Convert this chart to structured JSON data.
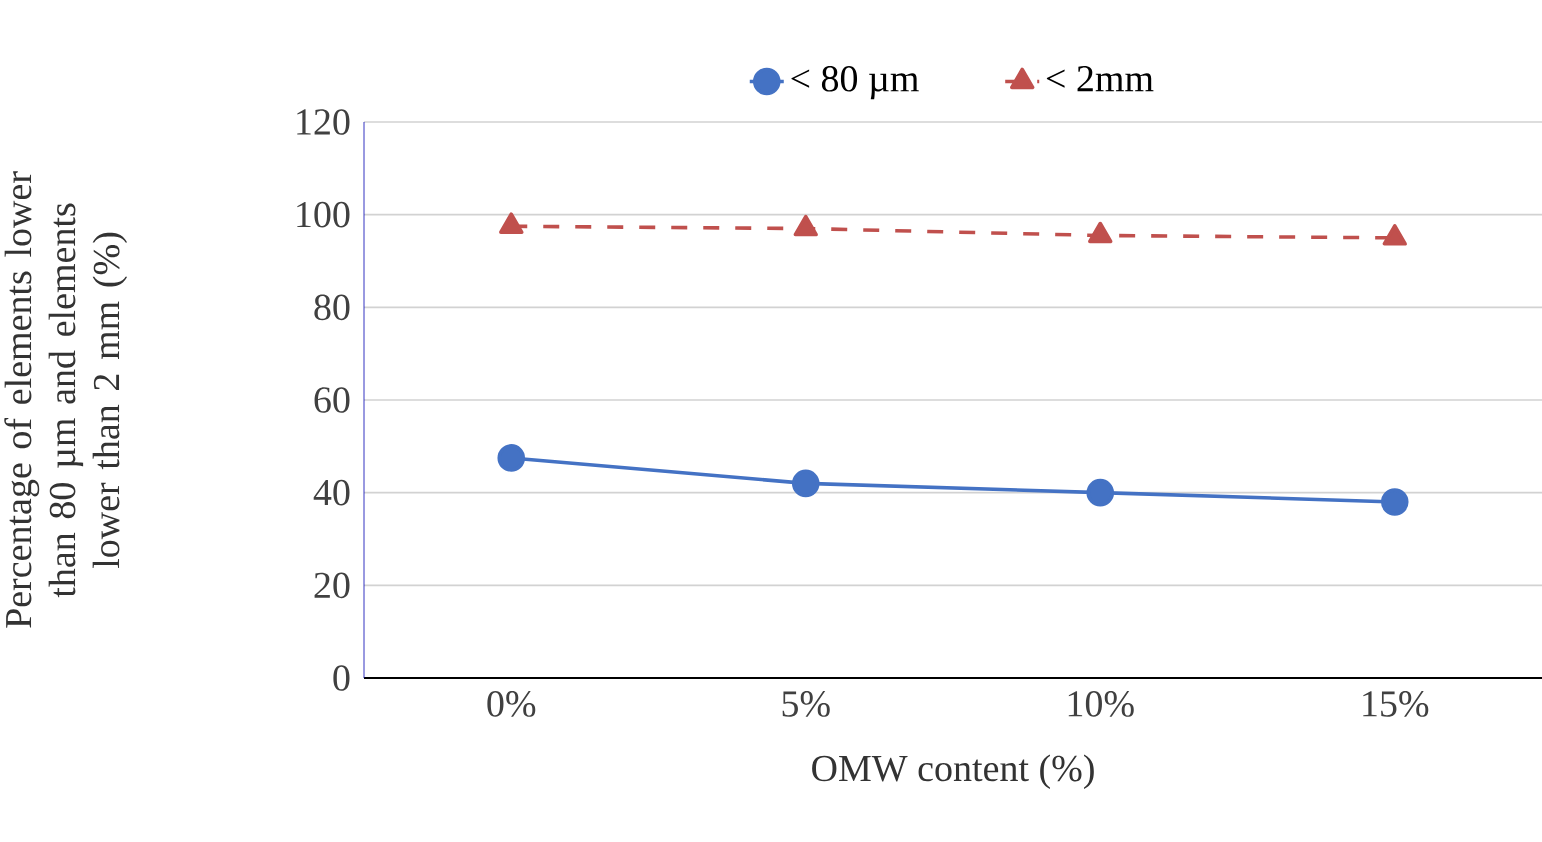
{
  "chart_data": {
    "type": "line",
    "xlabel": "OMW content (%)",
    "ylabel": "Percentage of elements lower than 80 µm and elements lower than 2 mm (%)",
    "categories": [
      "0%",
      "5%",
      "10%",
      "15%"
    ],
    "series": [
      {
        "name": "< 80 µm",
        "color": "#4472c4",
        "marker": "circle",
        "line_style": "solid",
        "values": [
          47.5,
          42,
          40,
          38
        ]
      },
      {
        "name": "< 2mm",
        "color": "#c0504d",
        "marker": "triangle",
        "line_style": "dashed",
        "values": [
          97.5,
          97,
          95.5,
          95
        ]
      }
    ],
    "ylim": [
      0,
      120
    ],
    "yticks": [
      0,
      20,
      40,
      60,
      80,
      100,
      120
    ],
    "grid": "y",
    "legend": "top"
  }
}
